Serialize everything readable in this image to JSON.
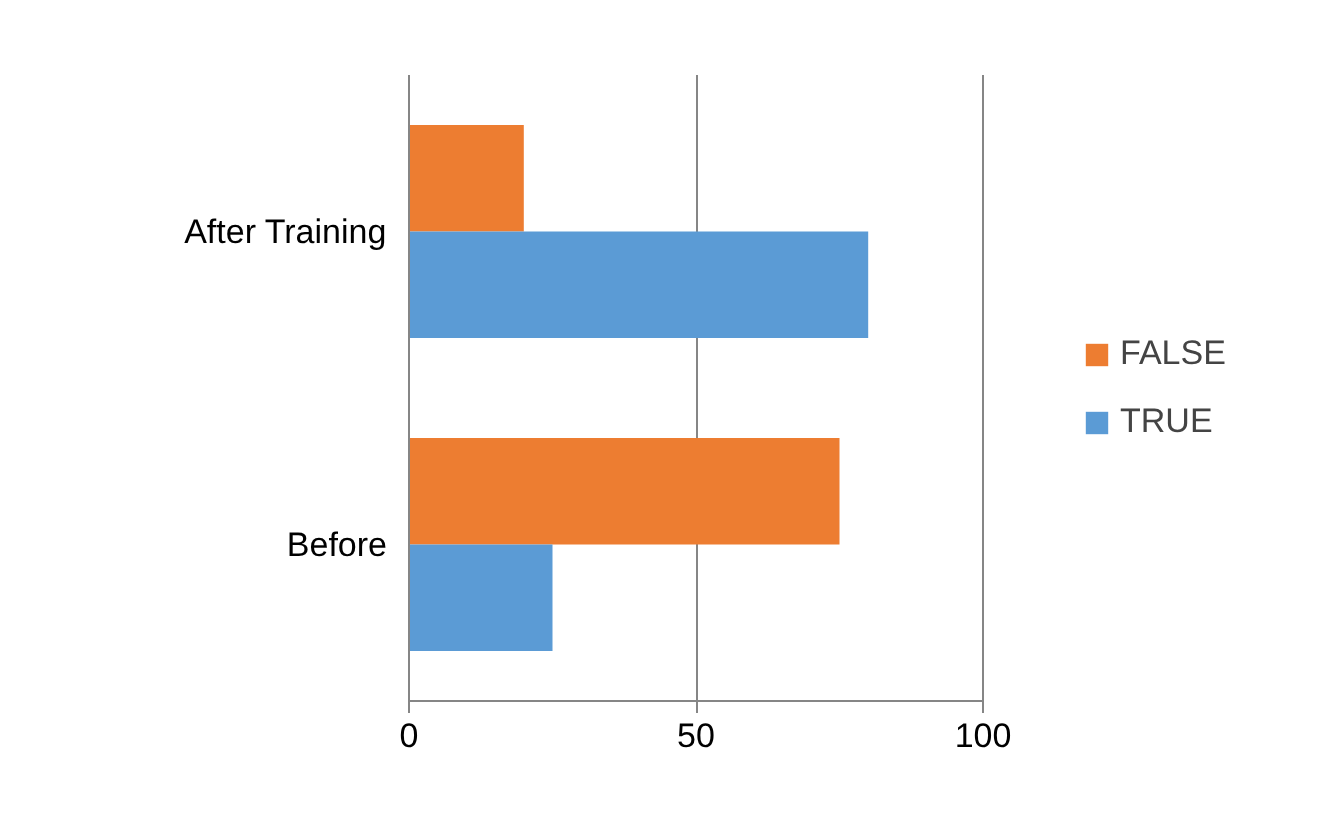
{
  "chart_data": {
    "type": "bar",
    "orientation": "horizontal",
    "categories": [
      "After Training",
      "Before"
    ],
    "series": [
      {
        "name": "FALSE",
        "color": "#ed7d31",
        "values": [
          20,
          75
        ]
      },
      {
        "name": "TRUE",
        "color": "#5b9bd5",
        "values": [
          80,
          25
        ]
      }
    ],
    "xlim": [
      0,
      100
    ],
    "xticks": [
      0,
      50,
      100
    ],
    "grid": "x",
    "legend": "right"
  }
}
